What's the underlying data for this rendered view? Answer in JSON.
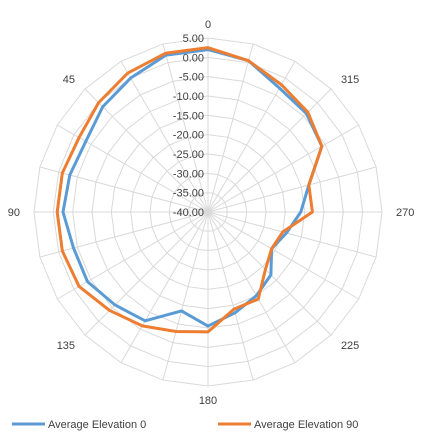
{
  "chart_data": {
    "type": "radar",
    "title": "",
    "radial_axis": {
      "min": -40,
      "max": 5,
      "step": 5,
      "tick_labels": [
        "5.00",
        "0.00",
        "-5.00",
        "-10.00",
        "-15.00",
        "-20.00",
        "-25.00",
        "-30.00",
        "-35.00",
        "-40.00"
      ]
    },
    "angle_labels": [
      {
        "angle": 0,
        "text": "0"
      },
      {
        "angle": 45,
        "text": "45"
      },
      {
        "angle": 90,
        "text": "90"
      },
      {
        "angle": 135,
        "text": "135"
      },
      {
        "angle": 180,
        "text": "180"
      },
      {
        "angle": 225,
        "text": "225"
      },
      {
        "angle": 270,
        "text": "270"
      },
      {
        "angle": 315,
        "text": "315"
      }
    ],
    "categories": [
      0,
      15,
      30,
      45,
      60,
      75,
      90,
      105,
      120,
      135,
      150,
      165,
      180,
      195,
      210,
      225,
      240,
      255,
      270,
      285,
      300,
      315,
      330,
      345
    ],
    "series": [
      {
        "name": "Average Elevation 0",
        "color": "#5b9bd5",
        "values": [
          2,
          2,
          0,
          -1.5,
          -3.5,
          -3,
          -2.5,
          -4,
          -4,
          -6,
          -7.5,
          -13.5,
          -10.5,
          -13,
          -15,
          -17,
          -21,
          -19,
          -16,
          -13,
          -6,
          -4,
          -3,
          0.5
        ]
      },
      {
        "name": "Average Elevation 90",
        "color": "#ed7d31",
        "values": [
          2.5,
          2.5,
          1.5,
          0,
          -1.5,
          -1,
          -1,
          -1,
          -1.5,
          -4,
          -6,
          -8,
          -9,
          -14,
          -14,
          -19,
          -21,
          -20,
          -13,
          -13,
          -6,
          -3.5,
          -2,
          0.5
        ]
      }
    ],
    "legend": {
      "position": "bottom",
      "entries": [
        "Average Elevation 0",
        "Average Elevation 90"
      ]
    }
  }
}
